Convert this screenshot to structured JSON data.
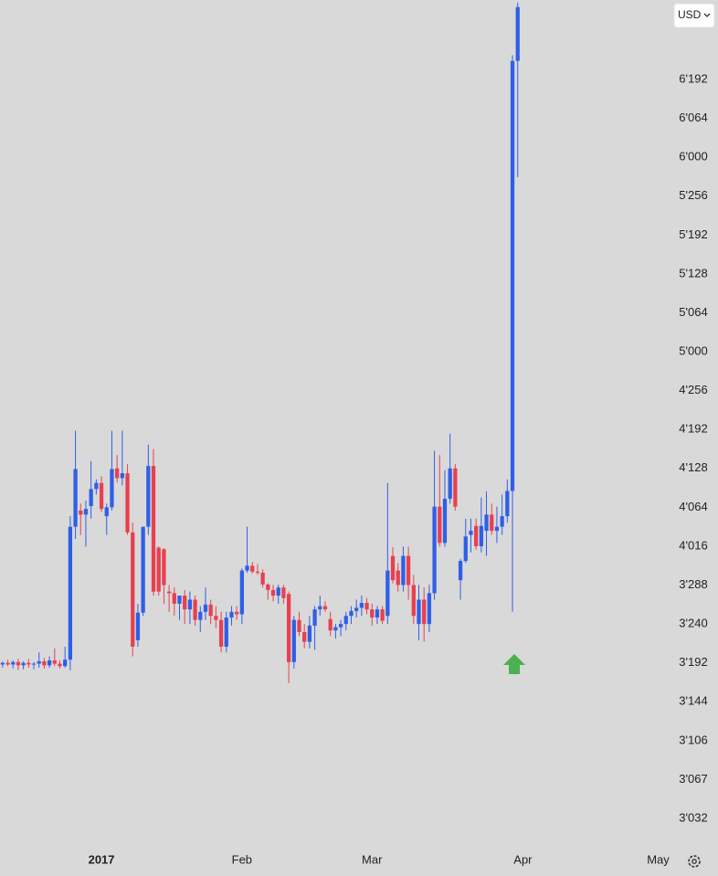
{
  "chart_data": {
    "type": "candlestick",
    "up_color": "#2f5fe8",
    "down_color": "#e8404f",
    "x": [
      -22,
      -21,
      -20,
      -19,
      -18,
      -17,
      -16,
      -15,
      -14,
      -13,
      -12,
      -11,
      -10,
      -9,
      -8,
      -7,
      -6,
      -5,
      -4,
      -3,
      -2,
      -1,
      0,
      1,
      2,
      3,
      4,
      5,
      6,
      7,
      8,
      9,
      10,
      11,
      12,
      13,
      14,
      15,
      16,
      17,
      18,
      19,
      20,
      21,
      22,
      23,
      24,
      25,
      26,
      27,
      28,
      29,
      30,
      31,
      32,
      33,
      34,
      35,
      36,
      37,
      38,
      39,
      40,
      41,
      42,
      43,
      44,
      45,
      46,
      47,
      48,
      49,
      50,
      51,
      52,
      53,
      54,
      55,
      56,
      57,
      58,
      59,
      60,
      61,
      62,
      63,
      64,
      65,
      66,
      67,
      68,
      69,
      70,
      71,
      72,
      73,
      74,
      75,
      76,
      77
    ],
    "open": [
      3190,
      3192,
      3190,
      3193,
      3189,
      3192,
      3190,
      3191,
      3194,
      3189,
      3195,
      3191,
      3188,
      3196,
      4040,
      4060,
      4055,
      4066,
      4094,
      4104,
      4053,
      4064,
      4128,
      4112,
      4120,
      4033,
      3220,
      3254,
      4040,
      4132,
      3990,
      3960,
      3280,
      3278,
      3265,
      3275,
      3258,
      3270,
      3245,
      3255,
      3264,
      3250,
      3245,
      3212,
      3248,
      3255,
      3252,
      3560,
      3650,
      3540,
      3520,
      3300,
      3282,
      3275,
      3285,
      3277,
      3193,
      3245,
      3230,
      3218,
      3238,
      3258,
      3262,
      3246,
      3232,
      3236,
      3240,
      3250,
      3256,
      3260,
      3266,
      3258,
      3248,
      3258,
      3250,
      3834,
      3560,
      3290,
      3834,
      3290,
      3240,
      3270,
      3240,
      3278,
      4065,
      4020,
      4078,
      4128,
      3380,
      3740,
      4030,
      4041,
      4016,
      4035,
      4055,
      4035,
      4040,
      4053,
      4091,
      6253
    ],
    "high": [
      3194,
      3196,
      3195,
      3197,
      3194,
      3197,
      3193,
      3205,
      3198,
      3200,
      3210,
      3195,
      3212,
      4053,
      4190,
      4070,
      4075,
      4140,
      4110,
      4115,
      4070,
      4190,
      4150,
      4190,
      4135,
      4045,
      3265,
      4040,
      4167,
      4160,
      4010,
      3980,
      3290,
      3285,
      3275,
      3282,
      3280,
      3275,
      3262,
      3285,
      3270,
      3262,
      3255,
      3255,
      3262,
      3262,
      3600,
      4040,
      3720,
      3680,
      3580,
      3320,
      3292,
      3295,
      3292,
      3280,
      3250,
      3255,
      3240,
      3250,
      3262,
      3275,
      3268,
      3255,
      3240,
      3245,
      3255,
      3262,
      3270,
      3275,
      3272,
      3265,
      3262,
      3262,
      4104,
      4000,
      3700,
      4010,
      4010,
      3480,
      3290,
      3285,
      3295,
      4157,
      4150,
      4125,
      4185,
      4135,
      3780,
      4050,
      4050,
      4050,
      4080,
      4090,
      4070,
      4065,
      4085,
      4110,
      6272,
      6445
    ],
    "low": [
      3186,
      3188,
      3185,
      3183,
      3184,
      3186,
      3184,
      3186,
      3185,
      3186,
      3188,
      3185,
      3186,
      3183,
      4025,
      4030,
      4010,
      4050,
      4085,
      4058,
      4030,
      4060,
      4105,
      4100,
      4030,
      3200,
      3212,
      3250,
      4030,
      3275,
      3275,
      3265,
      3255,
      3250,
      3245,
      3240,
      3240,
      3238,
      3230,
      3245,
      3240,
      3235,
      3205,
      3205,
      3238,
      3245,
      3240,
      3520,
      3500,
      3480,
      3285,
      3270,
      3268,
      3265,
      3265,
      3167,
      3185,
      3225,
      3210,
      3210,
      3208,
      3250,
      3255,
      3225,
      3222,
      3225,
      3232,
      3240,
      3248,
      3250,
      3252,
      3238,
      3240,
      3240,
      3240,
      3320,
      3280,
      3280,
      3270,
      3240,
      3220,
      3218,
      3230,
      3270,
      4010,
      4005,
      4070,
      4060,
      3270,
      3700,
      3900,
      3950,
      3900,
      3834,
      4030,
      4020,
      4030,
      4045,
      3255,
      5620
    ],
    "close": [
      3192,
      3190,
      3193,
      3189,
      3192,
      3190,
      3191,
      3194,
      3189,
      3195,
      3191,
      3188,
      3196,
      4040,
      4127,
      4055,
      4062,
      4094,
      4104,
      4062,
      4064,
      4127,
      4112,
      4120,
      4033,
      3212,
      3254,
      4040,
      4132,
      3280,
      3280,
      3288,
      3278,
      3265,
      3275,
      3258,
      3270,
      3245,
      3255,
      3264,
      3250,
      3245,
      3212,
      3248,
      3255,
      3252,
      3560,
      3650,
      3540,
      3520,
      3300,
      3282,
      3275,
      3285,
      3272,
      3193,
      3245,
      3230,
      3218,
      3238,
      3258,
      3262,
      3258,
      3232,
      3236,
      3240,
      3250,
      3256,
      3260,
      3266,
      3258,
      3248,
      3258,
      3244,
      3560,
      3380,
      3290,
      3834,
      3290,
      3250,
      3270,
      3240,
      3278,
      4065,
      4020,
      4078,
      4128,
      4065,
      3740,
      4028,
      4035,
      4016,
      4041,
      4055,
      4035,
      4040,
      4053,
      4091,
      6253,
      6430
    ],
    "xlim": [
      -22.5,
      115.5
    ],
    "xticks": [
      {
        "value": -3,
        "label": "2017"
      },
      {
        "value": 24,
        "label": "Feb"
      },
      {
        "value": 49,
        "label": "Mar"
      },
      {
        "value": 78,
        "label": "Apr"
      },
      {
        "value": 104,
        "label": "May"
      }
    ],
    "ylim": [
      3000,
      6450
    ],
    "yticks": [
      {
        "value": 3032,
        "label": "3'032"
      },
      {
        "value": 3067,
        "label": "3'067"
      },
      {
        "value": 3106,
        "label": "3'106"
      },
      {
        "value": 3144,
        "label": "3'144"
      },
      {
        "value": 3192,
        "label": "3'192"
      },
      {
        "value": 3240,
        "label": "3'240"
      },
      {
        "value": 3288,
        "label": "3'288"
      },
      {
        "value": 4016,
        "label": "4'016"
      },
      {
        "value": 4064,
        "label": "4'064"
      },
      {
        "value": 4128,
        "label": "4'128"
      },
      {
        "value": 4192,
        "label": "4'192"
      },
      {
        "value": 4256,
        "label": "4'256"
      },
      {
        "value": 5000,
        "label": "5'000"
      },
      {
        "value": 5064,
        "label": "5'064"
      },
      {
        "value": 5128,
        "label": "5'128"
      },
      {
        "value": 5192,
        "label": "5'192"
      },
      {
        "value": 5256,
        "label": "5'256"
      },
      {
        "value": 6000,
        "label": "6'000"
      },
      {
        "value": 6064,
        "label": "6'064"
      },
      {
        "value": 6192,
        "label": "6'192"
      }
    ]
  },
  "ui": {
    "currency": "USD"
  }
}
